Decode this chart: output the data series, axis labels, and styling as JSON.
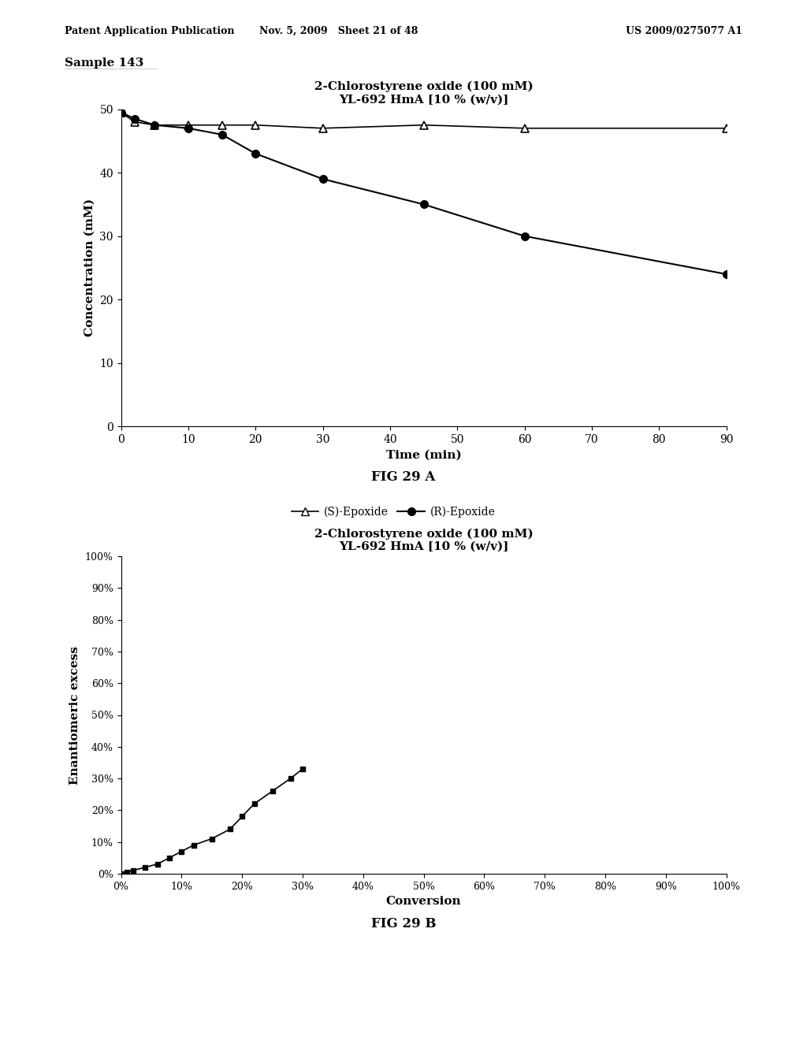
{
  "header_left": "Patent Application Publication",
  "header_mid": "Nov. 5, 2009   Sheet 21 of 48",
  "header_right": "US 2009/0275077 A1",
  "sample_label": "Sample 143",
  "fig_a": {
    "title_line1": "2-Chlorostyrene oxide (100 mM)",
    "title_line2": "YL-692 HmA [10 % (w/v)]",
    "xlabel": "Time (min)",
    "ylabel": "Concentration (mM)",
    "xlim": [
      0,
      90
    ],
    "ylim": [
      0,
      50
    ],
    "xticks": [
      0,
      10,
      20,
      30,
      40,
      50,
      60,
      70,
      80,
      90
    ],
    "yticks": [
      0,
      10,
      20,
      30,
      40,
      50
    ],
    "s_epoxide_x": [
      0,
      2,
      5,
      10,
      15,
      20,
      30,
      45,
      60,
      90
    ],
    "s_epoxide_y": [
      49.5,
      48.0,
      47.5,
      47.5,
      47.5,
      47.5,
      47.0,
      47.5,
      47.0,
      47.0
    ],
    "r_epoxide_x": [
      0,
      2,
      5,
      10,
      15,
      20,
      30,
      45,
      60,
      90
    ],
    "r_epoxide_y": [
      49.5,
      48.5,
      47.5,
      47.0,
      46.0,
      43.0,
      39.0,
      35.0,
      30.0,
      24.0
    ],
    "legend_s": "(S)-Epoxide",
    "legend_r": "(R)-Epoxide",
    "fig_label": "FIG 29 A"
  },
  "fig_b": {
    "title_line1": "2-Chlorostyrene oxide (100 mM)",
    "title_line2": "YL-692 HmA [10 % (w/v)]",
    "xlabel": "Conversion",
    "ylabel": "Enantiomeric excess",
    "xlim": [
      0,
      1.0
    ],
    "ylim": [
      0,
      1.0
    ],
    "xticks": [
      0.0,
      0.1,
      0.2,
      0.3,
      0.4,
      0.5,
      0.6,
      0.7,
      0.8,
      0.9,
      1.0
    ],
    "yticks": [
      0.0,
      0.1,
      0.2,
      0.3,
      0.4,
      0.5,
      0.6,
      0.7,
      0.8,
      0.9,
      1.0
    ],
    "xtick_labels": [
      "0%",
      "10%",
      "20%",
      "30%",
      "40%",
      "50%",
      "60%",
      "70%",
      "80%",
      "90%",
      "100%"
    ],
    "ytick_labels": [
      "0%",
      "10%",
      "20%",
      "30%",
      "40%",
      "50%",
      "60%",
      "70%",
      "80%",
      "90%",
      "100%"
    ],
    "data_x": [
      0.0,
      0.01,
      0.02,
      0.04,
      0.06,
      0.08,
      0.1,
      0.12,
      0.15,
      0.18,
      0.2,
      0.22,
      0.25,
      0.28,
      0.3
    ],
    "data_y": [
      0.0,
      0.005,
      0.01,
      0.02,
      0.03,
      0.05,
      0.07,
      0.09,
      0.11,
      0.14,
      0.18,
      0.22,
      0.26,
      0.3,
      0.33
    ],
    "fig_label": "FIG 29 B"
  },
  "background_color": "#ffffff",
  "line_color": "#000000",
  "text_color": "#000000"
}
